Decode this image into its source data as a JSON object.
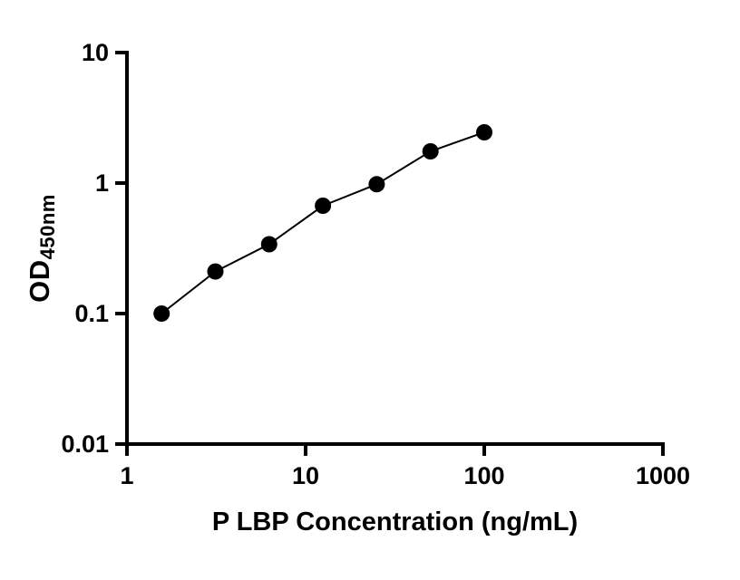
{
  "chart_data": {
    "type": "scatter",
    "title": "",
    "xlabel": "P LBP Concentration (ng/mL)",
    "ylabel_main": "OD",
    "ylabel_sub": "450nm",
    "x": [
      1.5625,
      3.125,
      6.25,
      12.5,
      25,
      50,
      100
    ],
    "y": [
      0.1,
      0.21,
      0.34,
      0.67,
      0.98,
      1.75,
      2.45
    ],
    "xscale": "log",
    "yscale": "log",
    "xlim": [
      1,
      1000
    ],
    "ylim": [
      0.01,
      10
    ],
    "xticks": [
      1,
      10,
      100,
      1000
    ],
    "xtick_labels": [
      "1",
      "10",
      "100",
      "1000"
    ],
    "yticks": [
      0.01,
      0.1,
      1,
      10
    ],
    "ytick_labels": [
      "0.01",
      "0.1",
      "1",
      "10"
    ],
    "grid": false,
    "legend": null,
    "marker": "circle",
    "marker_color": "#000000",
    "line_color": "#000000",
    "axis_color": "#000000",
    "background": "#ffffff"
  }
}
